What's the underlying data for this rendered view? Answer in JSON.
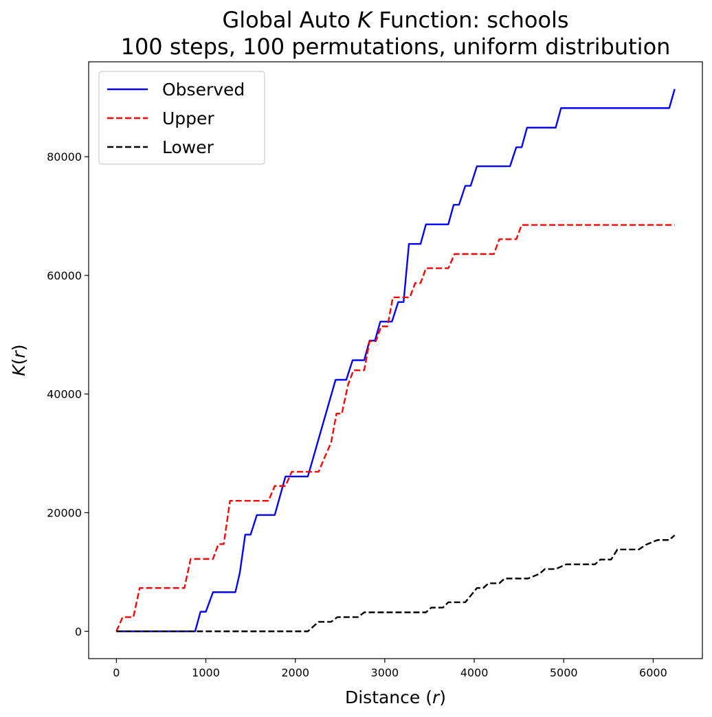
{
  "chart_data": {
    "type": "line",
    "title_lines": [
      [
        "Global Auto ",
        "K",
        " Function: schools"
      ],
      [
        "100 steps, 100 permutations, uniform distribution"
      ]
    ],
    "xlabel": [
      "Distance (",
      "r",
      ")"
    ],
    "ylabel": [
      "K",
      "(",
      "r",
      ")"
    ],
    "xlim": [
      -310,
      6550
    ],
    "ylim": [
      -4600,
      96000
    ],
    "x_ticks": [
      0,
      1000,
      2000,
      3000,
      4000,
      5000,
      6000
    ],
    "y_ticks": [
      0,
      20000,
      40000,
      60000,
      80000
    ],
    "legend_position": "upper left",
    "grid": false,
    "series": [
      {
        "name": "Observed",
        "color": "#0000ff",
        "dash": "solid",
        "points": [
          [
            0,
            0
          ],
          [
            880,
            0
          ],
          [
            940,
            3300
          ],
          [
            1000,
            3300
          ],
          [
            1080,
            6600
          ],
          [
            1330,
            6600
          ],
          [
            1380,
            9900
          ],
          [
            1440,
            16300
          ],
          [
            1500,
            16300
          ],
          [
            1570,
            19600
          ],
          [
            1770,
            19600
          ],
          [
            1890,
            26100
          ],
          [
            2140,
            26100
          ],
          [
            2450,
            42400
          ],
          [
            2570,
            42400
          ],
          [
            2640,
            45700
          ],
          [
            2770,
            45700
          ],
          [
            2830,
            49000
          ],
          [
            2890,
            49000
          ],
          [
            2950,
            52200
          ],
          [
            3080,
            52200
          ],
          [
            3150,
            55500
          ],
          [
            3210,
            55500
          ],
          [
            3270,
            65300
          ],
          [
            3400,
            65300
          ],
          [
            3460,
            68600
          ],
          [
            3710,
            68600
          ],
          [
            3770,
            71900
          ],
          [
            3830,
            71900
          ],
          [
            3900,
            75100
          ],
          [
            3960,
            75100
          ],
          [
            4030,
            78400
          ],
          [
            4400,
            78400
          ],
          [
            4470,
            81600
          ],
          [
            4530,
            81600
          ],
          [
            4590,
            84900
          ],
          [
            4910,
            84900
          ],
          [
            4970,
            88200
          ],
          [
            6180,
            88200
          ],
          [
            6240,
            91400
          ]
        ]
      },
      {
        "name": "Upper",
        "color": "#ff0000",
        "dash": "dashed",
        "points": [
          [
            0,
            0
          ],
          [
            70,
            2400
          ],
          [
            190,
            2400
          ],
          [
            260,
            7300
          ],
          [
            760,
            7300
          ],
          [
            830,
            12200
          ],
          [
            1080,
            12200
          ],
          [
            1140,
            14700
          ],
          [
            1200,
            14700
          ],
          [
            1270,
            22000
          ],
          [
            1700,
            22000
          ],
          [
            1770,
            24500
          ],
          [
            1890,
            24500
          ],
          [
            1960,
            26900
          ],
          [
            2260,
            26900
          ],
          [
            2330,
            29400
          ],
          [
            2400,
            31800
          ],
          [
            2460,
            36700
          ],
          [
            2520,
            36700
          ],
          [
            2590,
            41600
          ],
          [
            2650,
            44000
          ],
          [
            2770,
            44000
          ],
          [
            2830,
            48900
          ],
          [
            2900,
            48900
          ],
          [
            2960,
            51400
          ],
          [
            3030,
            51400
          ],
          [
            3090,
            56300
          ],
          [
            3280,
            56300
          ],
          [
            3340,
            58700
          ],
          [
            3400,
            58700
          ],
          [
            3460,
            61200
          ],
          [
            3710,
            61200
          ],
          [
            3780,
            63600
          ],
          [
            4220,
            63600
          ],
          [
            4280,
            66100
          ],
          [
            4470,
            66100
          ],
          [
            4530,
            68500
          ],
          [
            6240,
            68500
          ]
        ]
      },
      {
        "name": "Lower",
        "color": "#000000",
        "dash": "dashed",
        "points": [
          [
            0,
            0
          ],
          [
            2140,
            0
          ],
          [
            2260,
            1600
          ],
          [
            2400,
            1600
          ],
          [
            2470,
            2400
          ],
          [
            2700,
            2400
          ],
          [
            2770,
            3200
          ],
          [
            3460,
            3200
          ],
          [
            3520,
            4000
          ],
          [
            3650,
            4000
          ],
          [
            3710,
            4900
          ],
          [
            3900,
            4900
          ],
          [
            4030,
            7300
          ],
          [
            4100,
            7300
          ],
          [
            4160,
            8100
          ],
          [
            4280,
            8100
          ],
          [
            4340,
            8900
          ],
          [
            4600,
            8900
          ],
          [
            4730,
            9700
          ],
          [
            4790,
            10500
          ],
          [
            4910,
            10500
          ],
          [
            5030,
            11300
          ],
          [
            5350,
            11300
          ],
          [
            5410,
            12100
          ],
          [
            5530,
            12100
          ],
          [
            5600,
            13800
          ],
          [
            5840,
            13800
          ],
          [
            5920,
            14600
          ],
          [
            6050,
            15400
          ],
          [
            6180,
            15400
          ],
          [
            6240,
            16200
          ]
        ]
      }
    ]
  }
}
